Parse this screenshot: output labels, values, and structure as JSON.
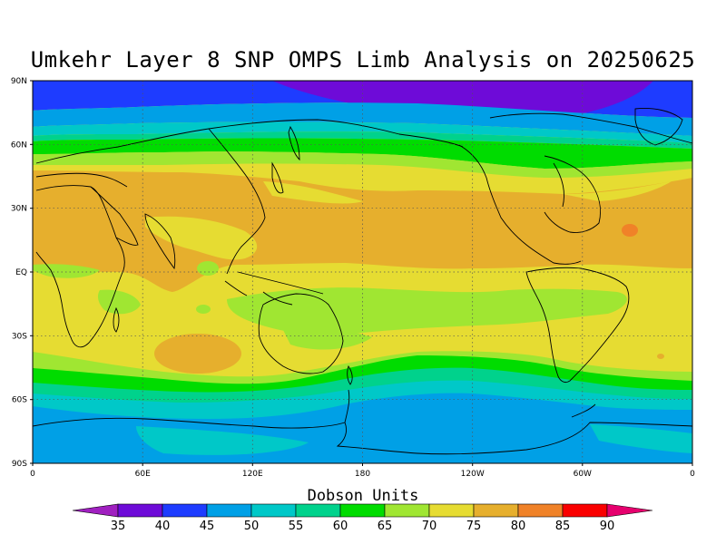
{
  "title": "Umkehr Layer 8 SNP OMPS Limb Analysis on 20250625",
  "units_label": "Dobson Units",
  "lat_ticks": [
    "90N",
    "60N",
    "30N",
    "EQ",
    "30S",
    "60S",
    "90S"
  ],
  "lon_ticks": [
    "0",
    "60E",
    "120E",
    "180",
    "120W",
    "60W",
    "0"
  ],
  "colorbar": {
    "labels": [
      "35",
      "40",
      "45",
      "50",
      "55",
      "60",
      "65",
      "70",
      "75",
      "80",
      "85",
      "90"
    ],
    "colors": [
      "#a020c0",
      "#6e0bd8",
      "#1e3cff",
      "#00a0e6",
      "#00c8c8",
      "#00d28c",
      "#00dc00",
      "#a0e632",
      "#e6dc32",
      "#e6af2d",
      "#f08228",
      "#fa0000",
      "#e6006e"
    ]
  },
  "chart_data": {
    "type": "heatmap",
    "title": "Umkehr Layer 8 SNP OMPS Limb Analysis on 20250625",
    "colorbar_label": "Dobson Units",
    "x_axis": {
      "range": [
        "0",
        "0"
      ],
      "ticks": [
        "0",
        "60E",
        "120E",
        "180",
        "120W",
        "60W",
        "0"
      ]
    },
    "y_axis": {
      "range": [
        "90S",
        "90N"
      ],
      "ticks": [
        "90N",
        "60N",
        "30N",
        "EQ",
        "30S",
        "60S",
        "90S"
      ]
    },
    "zonal_bands": [
      {
        "lat_from": 90,
        "lat_to": 78,
        "value_range": [
          35,
          40
        ]
      },
      {
        "lat_from": 78,
        "lat_to": 70,
        "value_range": [
          40,
          45
        ]
      },
      {
        "lat_from": 70,
        "lat_to": 64,
        "value_range": [
          50,
          55
        ]
      },
      {
        "lat_from": 64,
        "lat_to": 55,
        "value_range": [
          60,
          65
        ]
      },
      {
        "lat_from": 55,
        "lat_to": 45,
        "value_range": [
          70,
          75
        ]
      },
      {
        "lat_from": 45,
        "lat_to": 10,
        "value_range": [
          75,
          80
        ]
      },
      {
        "lat_from": 10,
        "lat_to": -30,
        "value_range": [
          70,
          75
        ]
      },
      {
        "lat_from": -30,
        "lat_to": -45,
        "value_range": [
          70,
          75
        ]
      },
      {
        "lat_from": -45,
        "lat_to": -55,
        "value_range": [
          60,
          65
        ]
      },
      {
        "lat_from": -55,
        "lat_to": -65,
        "value_range": [
          55,
          60
        ]
      },
      {
        "lat_from": -65,
        "lat_to": -90,
        "value_range": [
          50,
          55
        ]
      }
    ],
    "grid": true,
    "legend": "bottom"
  }
}
